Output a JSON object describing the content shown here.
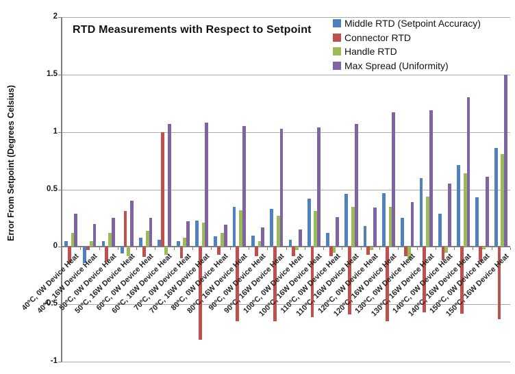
{
  "title": "RTD Measurements with Respect to Setpoint",
  "y_axis_title": "Error From Setpoint (Degrees Celsius)",
  "chart_data": {
    "type": "bar",
    "title": "RTD Measurements with Respect to Setpoint",
    "xlabel": "",
    "ylabel": "Error From Setpoint (Degrees Celsius)",
    "ylim": [
      -1,
      2
    ],
    "ytick_step": 0.5,
    "y_tick_labels": [
      "2",
      "1.5",
      "1",
      "0.5",
      "0",
      "-0.5",
      "-1"
    ],
    "grid": true,
    "legend_position": "top-right",
    "categories": [
      "40ºC, 0W Device Heat",
      "40ºC, 16W Device Heat",
      "50ºC, 0W Device Heat",
      "50ºC, 16W Device Heat",
      "60ºC, 0W Device Heat",
      "60ºC, 16W Device Heat",
      "70ºC, 0W Device Heat",
      "70ºC, 16W Device Heat",
      "80ºC, 0W Device Heat",
      "80ºC, 16W Device Heat",
      "90ºC, 0W Device Heat",
      "90ºC, 16W Device Heat",
      "100ºC, 0W Device Heat",
      "100ºC, 16W Device Heat",
      "110ºC, 0W Device Heat",
      "110ºC, 16W Device Heat",
      "120ºC, 0W Device Heat",
      "120ºC, 16W Device Heat",
      "130ºC, 0W Device Heat",
      "130ºC, 16W Device Heat",
      "140ºC, 0W Device Heat",
      "140ºC, 16W Device Heat",
      "150ºC, 0W Device Heat",
      "150ºC, 16W Device Heat"
    ],
    "series": [
      {
        "name": "Middle RTD (Setpoint Accuracy)",
        "color": "#4F81BD",
        "values": [
          0.05,
          -0.14,
          0.05,
          -0.06,
          0.08,
          0.06,
          0.05,
          0.23,
          0.09,
          0.35,
          0.1,
          0.33,
          0.06,
          0.42,
          0.12,
          0.46,
          0.18,
          0.47,
          0.25,
          0.6,
          0.29,
          0.71,
          0.43,
          0.86
        ]
      },
      {
        "name": "Connector RTD",
        "color": "#C0504D",
        "values": [
          -0.14,
          -0.03,
          -0.13,
          0.31,
          -0.09,
          1.0,
          -0.1,
          -0.81,
          -0.07,
          -0.65,
          -0.08,
          -0.65,
          -0.08,
          -0.61,
          -0.08,
          -0.59,
          -0.07,
          -0.65,
          -0.08,
          -0.57,
          -0.12,
          -0.58,
          -0.13,
          -0.63
        ]
      },
      {
        "name": "Handle RTD",
        "color": "#9BBB59",
        "values": [
          0.12,
          0.05,
          0.12,
          -0.08,
          0.14,
          -0.07,
          0.08,
          0.21,
          0.12,
          0.32,
          0.05,
          0.27,
          -0.03,
          0.31,
          -0.05,
          0.35,
          -0.03,
          0.35,
          -0.12,
          0.44,
          -0.05,
          0.64,
          -0.02,
          0.81
        ]
      },
      {
        "name": "Max Spread (Uniformity)",
        "color": "#8064A2",
        "values": [
          0.29,
          0.2,
          0.25,
          0.4,
          0.25,
          1.07,
          0.22,
          1.08,
          0.19,
          1.05,
          0.17,
          1.03,
          0.15,
          1.04,
          0.26,
          1.07,
          0.34,
          1.17,
          0.39,
          1.19,
          0.55,
          1.3,
          0.61,
          1.5
        ]
      }
    ]
  },
  "colors": {
    "gridline": "#ababab",
    "axis": "#7f7f7f",
    "text": "#1a1a1a"
  }
}
